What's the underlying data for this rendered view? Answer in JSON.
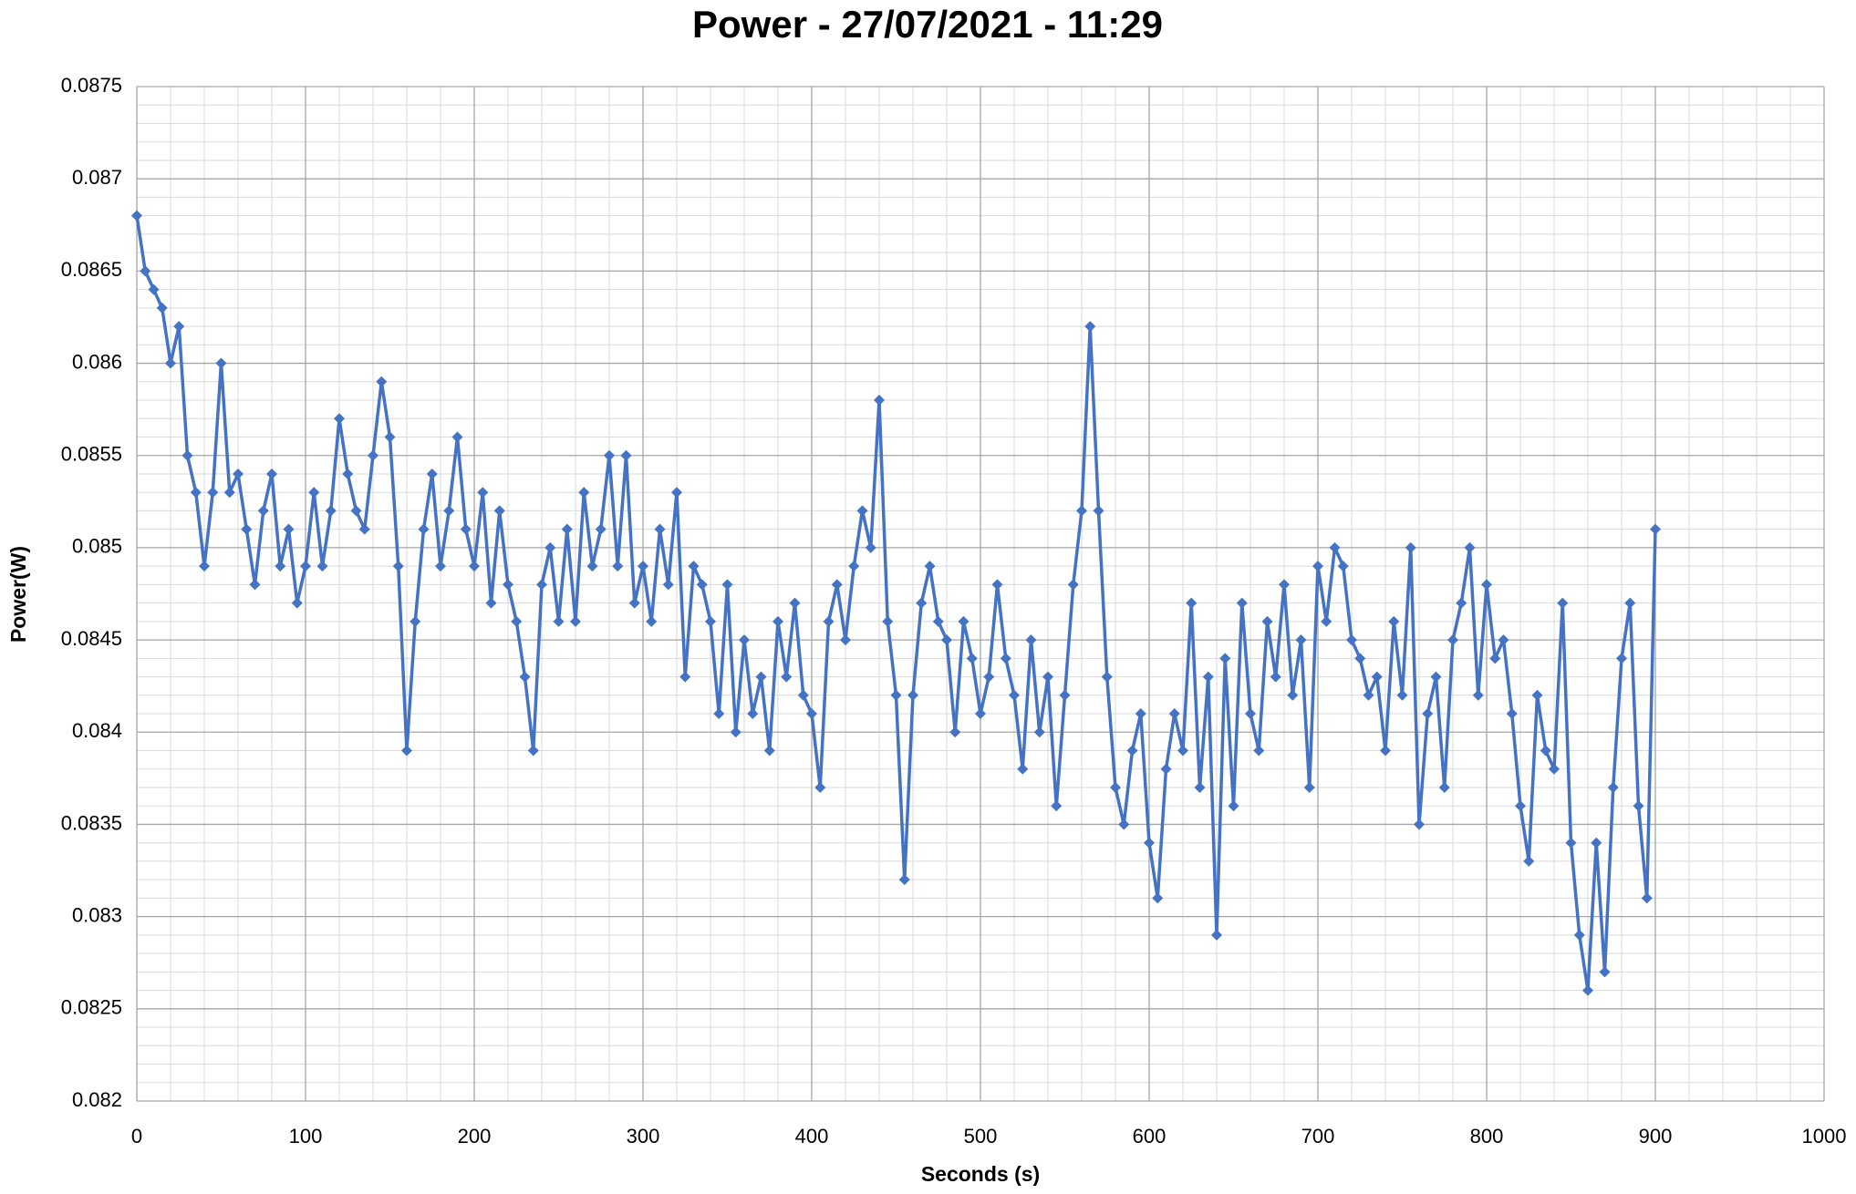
{
  "chart_data": {
    "type": "line",
    "title": "Power - 27/07/2021 - 11:29",
    "x_label": "Seconds (s)",
    "y_label": "Power(W)",
    "x": [
      0,
      5,
      10,
      15,
      20,
      25,
      30,
      35,
      40,
      45,
      50,
      55,
      60,
      65,
      70,
      75,
      80,
      85,
      90,
      95,
      100,
      105,
      110,
      115,
      120,
      125,
      130,
      135,
      140,
      145,
      150,
      155,
      160,
      165,
      170,
      175,
      180,
      185,
      190,
      195,
      200,
      205,
      210,
      215,
      220,
      225,
      230,
      235,
      240,
      245,
      250,
      255,
      260,
      265,
      270,
      275,
      280,
      285,
      290,
      295,
      300,
      305,
      310,
      315,
      320,
      325,
      330,
      335,
      340,
      345,
      350,
      355,
      360,
      365,
      370,
      375,
      380,
      385,
      390,
      395,
      400,
      405,
      410,
      415,
      420,
      425,
      430,
      435,
      440,
      445,
      450,
      455,
      460,
      465,
      470,
      475,
      480,
      485,
      490,
      495,
      500,
      505,
      510,
      515,
      520,
      525,
      530,
      535,
      540,
      545,
      550,
      555,
      560,
      565,
      570,
      575,
      580,
      585,
      590,
      595,
      600,
      605,
      610,
      615,
      620,
      625,
      630,
      635,
      640,
      645,
      650,
      655,
      660,
      665,
      670,
      675,
      680,
      685,
      690,
      695,
      700,
      705,
      710,
      715,
      720,
      725,
      730,
      735,
      740,
      745,
      750,
      755,
      760,
      765,
      770,
      775,
      780,
      785,
      790,
      795,
      800,
      805,
      810,
      815,
      820,
      825,
      830,
      835,
      840,
      845,
      850,
      855,
      860,
      865,
      870,
      875,
      880,
      885,
      890,
      895,
      900
    ],
    "series": [
      {
        "name": "Power",
        "color": "#4472c4",
        "values": [
          0.0868,
          0.0865,
          0.0864,
          0.0863,
          0.086,
          0.0862,
          0.0855,
          0.0853,
          0.0849,
          0.0853,
          0.086,
          0.0853,
          0.0854,
          0.0851,
          0.0848,
          0.0852,
          0.0854,
          0.0849,
          0.0851,
          0.0847,
          0.0849,
          0.0853,
          0.0849,
          0.0852,
          0.0857,
          0.0854,
          0.0852,
          0.0851,
          0.0855,
          0.0859,
          0.0856,
          0.0849,
          0.0839,
          0.0846,
          0.0851,
          0.0854,
          0.0849,
          0.0852,
          0.0856,
          0.0851,
          0.0849,
          0.0853,
          0.0847,
          0.0852,
          0.0848,
          0.0846,
          0.0843,
          0.0839,
          0.0848,
          0.085,
          0.0846,
          0.0851,
          0.0846,
          0.0853,
          0.0849,
          0.0851,
          0.0855,
          0.0849,
          0.0855,
          0.0847,
          0.0849,
          0.0846,
          0.0851,
          0.0848,
          0.0853,
          0.0843,
          0.0849,
          0.0848,
          0.0846,
          0.0841,
          0.0848,
          0.084,
          0.0845,
          0.0841,
          0.0843,
          0.0839,
          0.0846,
          0.0843,
          0.0847,
          0.0842,
          0.0841,
          0.0837,
          0.0846,
          0.0848,
          0.0845,
          0.0849,
          0.0852,
          0.085,
          0.0858,
          0.0846,
          0.0842,
          0.0832,
          0.0842,
          0.0847,
          0.0849,
          0.0846,
          0.0845,
          0.084,
          0.0846,
          0.0844,
          0.0841,
          0.0843,
          0.0848,
          0.0844,
          0.0842,
          0.0838,
          0.0845,
          0.084,
          0.0843,
          0.0836,
          0.0842,
          0.0848,
          0.0852,
          0.0862,
          0.0852,
          0.0843,
          0.0837,
          0.0835,
          0.0839,
          0.0841,
          0.0834,
          0.0831,
          0.0838,
          0.0841,
          0.0839,
          0.0847,
          0.0837,
          0.0843,
          0.0829,
          0.0844,
          0.0836,
          0.0847,
          0.0841,
          0.0839,
          0.0846,
          0.0843,
          0.0848,
          0.0842,
          0.0845,
          0.0837,
          0.0849,
          0.0846,
          0.085,
          0.0849,
          0.0845,
          0.0844,
          0.0842,
          0.0843,
          0.0839,
          0.0846,
          0.0842,
          0.085,
          0.0835,
          0.0841,
          0.0843,
          0.0837,
          0.0845,
          0.0847,
          0.085,
          0.0842,
          0.0848,
          0.0844,
          0.0845,
          0.0841,
          0.0836,
          0.0833,
          0.0842,
          0.0839,
          0.0838,
          0.0847,
          0.0834,
          0.0829,
          0.0826,
          0.0834,
          0.0827,
          0.0837,
          0.0844,
          0.0847,
          0.0836,
          0.0831,
          0.0851
        ]
      }
    ],
    "xlim": [
      0,
      1000
    ],
    "xticks": [
      0,
      100,
      200,
      300,
      400,
      500,
      600,
      700,
      800,
      900,
      1000
    ],
    "ylim": [
      0.082,
      0.0875
    ],
    "yticks": [
      0.082,
      0.0825,
      0.083,
      0.0835,
      0.084,
      0.0845,
      0.085,
      0.0855,
      0.086,
      0.0865,
      0.087,
      0.0875
    ],
    "grid": true,
    "minor_grid": true
  }
}
